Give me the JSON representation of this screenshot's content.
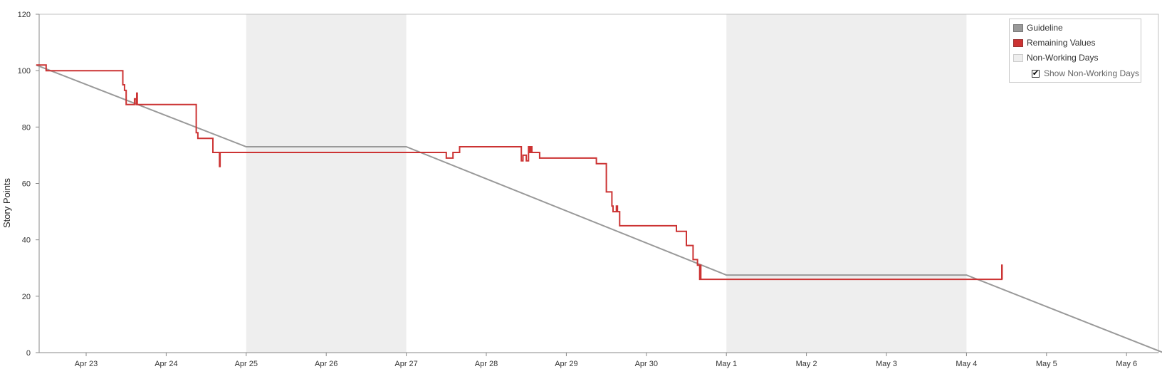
{
  "chart_data": {
    "type": "line",
    "ylabel": "Story Points",
    "xlabel": "",
    "ylim": [
      0,
      120
    ],
    "yticks": [
      0,
      20,
      40,
      60,
      80,
      100,
      120
    ],
    "x_tick_labels": [
      "Apr 23",
      "Apr 24",
      "Apr 25",
      "Apr 26",
      "Apr 27",
      "Apr 28",
      "Apr 29",
      "Apr 30",
      "May 1",
      "May 2",
      "May 3",
      "May 4",
      "May 5",
      "May 6"
    ],
    "non_working_periods": [
      {
        "start": "Apr 25",
        "end": "Apr 27"
      },
      {
        "start": "May 1",
        "end": "May 4"
      }
    ],
    "series": [
      {
        "name": "Guideline",
        "color": "#999999",
        "step": false,
        "points": [
          {
            "x": "Apr 22 09:00",
            "y": 102
          },
          {
            "x": "Apr 25 00:00",
            "y": 73
          },
          {
            "x": "Apr 27 00:00",
            "y": 73
          },
          {
            "x": "May 1 00:00",
            "y": 27.5
          },
          {
            "x": "May 4 00:00",
            "y": 27.5
          },
          {
            "x": "May 6 11:00",
            "y": 0
          }
        ]
      },
      {
        "name": "Remaining Values",
        "color": "#cc3333",
        "step": true,
        "points": [
          {
            "x": "Apr 22 09:00",
            "y": 102
          },
          {
            "x": "Apr 22 12:00",
            "y": 100
          },
          {
            "x": "Apr 23 11:00",
            "y": 95
          },
          {
            "x": "Apr 23 11:30",
            "y": 93
          },
          {
            "x": "Apr 23 12:00",
            "y": 88
          },
          {
            "x": "Apr 23 14:30",
            "y": 90
          },
          {
            "x": "Apr 23 15:00",
            "y": 88
          },
          {
            "x": "Apr 23 15:10",
            "y": 92
          },
          {
            "x": "Apr 23 15:20",
            "y": 88
          },
          {
            "x": "Apr 24 09:00",
            "y": 78
          },
          {
            "x": "Apr 24 09:30",
            "y": 76
          },
          {
            "x": "Apr 24 14:00",
            "y": 71
          },
          {
            "x": "Apr 24 16:00",
            "y": 66
          },
          {
            "x": "Apr 24 16:10",
            "y": 71
          },
          {
            "x": "Apr 27 12:00",
            "y": 69
          },
          {
            "x": "Apr 27 14:00",
            "y": 71
          },
          {
            "x": "Apr 27 16:00",
            "y": 73
          },
          {
            "x": "Apr 28 10:30",
            "y": 68
          },
          {
            "x": "Apr 28 11:00",
            "y": 70
          },
          {
            "x": "Apr 28 12:00",
            "y": 68
          },
          {
            "x": "Apr 28 12:40",
            "y": 73
          },
          {
            "x": "Apr 28 13:00",
            "y": 71
          },
          {
            "x": "Apr 28 13:20",
            "y": 73
          },
          {
            "x": "Apr 28 13:40",
            "y": 71
          },
          {
            "x": "Apr 28 16:00",
            "y": 69
          },
          {
            "x": "Apr 29 09:00",
            "y": 67
          },
          {
            "x": "Apr 29 12:00",
            "y": 57
          },
          {
            "x": "Apr 29 13:40",
            "y": 52
          },
          {
            "x": "Apr 29 14:00",
            "y": 50
          },
          {
            "x": "Apr 29 15:00",
            "y": 52
          },
          {
            "x": "Apr 29 15:20",
            "y": 50
          },
          {
            "x": "Apr 29 16:00",
            "y": 45
          },
          {
            "x": "Apr 30 09:00",
            "y": 43
          },
          {
            "x": "Apr 30 12:00",
            "y": 38
          },
          {
            "x": "Apr 30 14:00",
            "y": 33
          },
          {
            "x": "Apr 30 15:20",
            "y": 31
          },
          {
            "x": "Apr 30 16:00",
            "y": 26
          },
          {
            "x": "Apr 30 16:10",
            "y": 31
          },
          {
            "x": "Apr 30 16:20",
            "y": 26
          },
          {
            "x": "May 4 10:30",
            "y": 26
          },
          {
            "x": "May 4 10:35",
            "y": 31
          },
          {
            "x": "May 4 10:40",
            "y": 26
          }
        ]
      }
    ],
    "legend": {
      "placement": "top-right",
      "items": [
        {
          "label": "Guideline",
          "color": "#999999",
          "border": "#777777"
        },
        {
          "label": "Remaining Values",
          "color": "#cc3333",
          "border": "#993333"
        },
        {
          "label": "Non-Working Days",
          "color": "#eeeeee",
          "border": "#cccccc"
        }
      ],
      "show_non_working_label": "Show Non-Working Days",
      "show_non_working_checked": true
    },
    "grid": false
  }
}
